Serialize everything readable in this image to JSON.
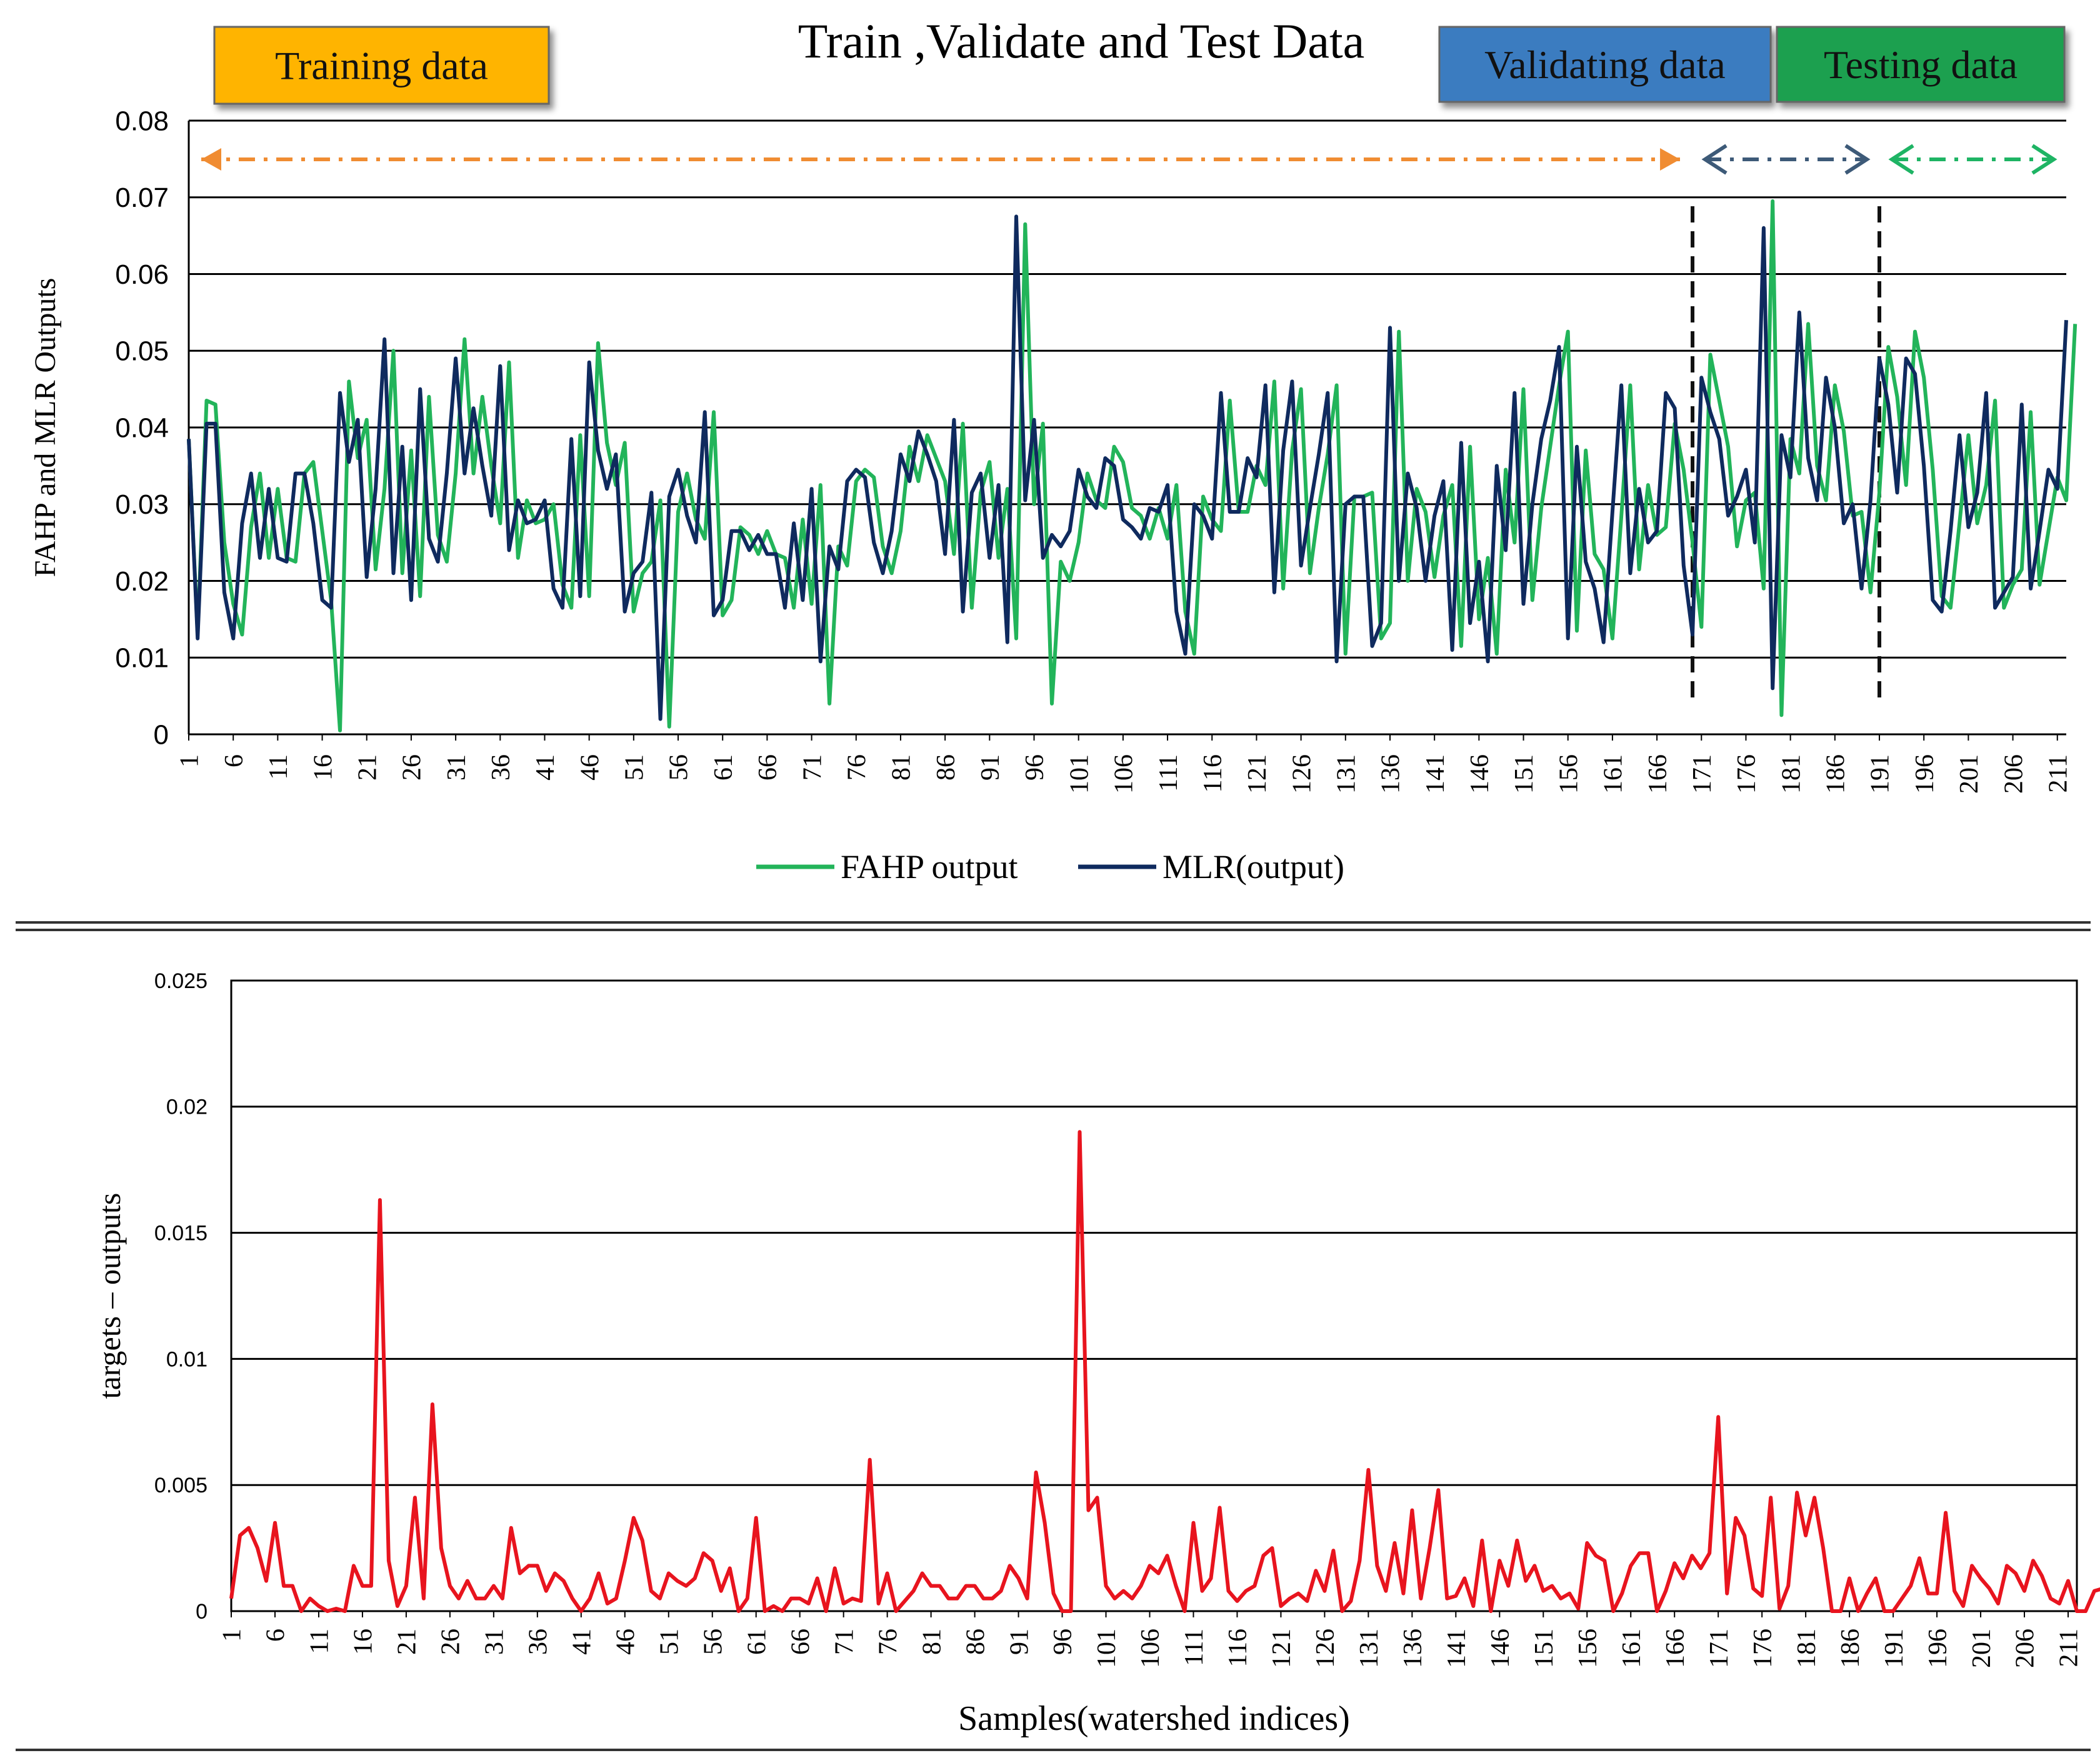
{
  "chart_data": [
    {
      "type": "line",
      "title": "Train ,Validate and Test Data",
      "ylabel": "FAHP  and MLR Outputs",
      "xlabel": "",
      "ylim": [
        0,
        0.08
      ],
      "yticks": [
        "0",
        "0.01",
        "0.02",
        "0.03",
        "0.04",
        "0.05",
        "0.06",
        "0.07",
        "0.08"
      ],
      "x_range": [
        1,
        212
      ],
      "xticks": [
        "1",
        "6",
        "11",
        "16",
        "21",
        "26",
        "31",
        "36",
        "41",
        "46",
        "51",
        "56",
        "61",
        "66",
        "71",
        "76",
        "81",
        "86",
        "91",
        "96",
        "101",
        "106",
        "111",
        "116",
        "121",
        "126",
        "131",
        "136",
        "141",
        "146",
        "151",
        "156",
        "161",
        "166",
        "171",
        "176",
        "181",
        "186",
        "191",
        "196",
        "201",
        "206",
        "211"
      ],
      "grid": "horizontal",
      "legend": "bottom-center",
      "segments": [
        {
          "label": "Training data",
          "color": "#FFB400",
          "arrow_color": "#F08C32",
          "from": 1,
          "to": 170
        },
        {
          "label": "Validating data",
          "color": "#3A7BC0",
          "arrow_color": "#3D5A78",
          "from": 170,
          "to": 191
        },
        {
          "label": "Testing data",
          "color": "#1AA050",
          "arrow_color": "#1EB464",
          "from": 191,
          "to": 212
        }
      ],
      "dividers": [
        170,
        191
      ],
      "colors": {
        "FAHP output": "#22B45A",
        "MLR(output)": "#0F2A5E"
      },
      "series": [
        {
          "name": "FAHP output",
          "values": [
            0.0385,
            0.013,
            0.0435,
            0.043,
            0.025,
            0.017,
            0.013,
            0.027,
            0.034,
            0.023,
            0.032,
            0.023,
            0.0225,
            0.034,
            0.0355,
            0.0265,
            0.0175,
            0.0005,
            0.046,
            0.036,
            0.041,
            0.0215,
            0.032,
            0.05,
            0.021,
            0.037,
            0.018,
            0.044,
            0.026,
            0.0225,
            0.034,
            0.0515,
            0.034,
            0.044,
            0.035,
            0.0275,
            0.0485,
            0.023,
            0.0305,
            0.0275,
            0.028,
            0.03,
            0.0195,
            0.0165,
            0.039,
            0.018,
            0.051,
            0.038,
            0.0325,
            0.038,
            0.016,
            0.021,
            0.0225,
            0.0305,
            0.001,
            0.029,
            0.034,
            0.028,
            0.0255,
            0.042,
            0.0155,
            0.0175,
            0.027,
            0.026,
            0.0235,
            0.0265,
            0.0235,
            0.023,
            0.0165,
            0.028,
            0.017,
            0.0325,
            0.004,
            0.0245,
            0.022,
            0.033,
            0.0345,
            0.0335,
            0.0245,
            0.021,
            0.0265,
            0.0375,
            0.033,
            0.039,
            0.036,
            0.033,
            0.0235,
            0.0405,
            0.0165,
            0.0315,
            0.0355,
            0.023,
            0.032,
            0.0125,
            0.0665,
            0.03,
            0.0405,
            0.004,
            0.0225,
            0.02,
            0.025,
            0.034,
            0.0305,
            0.0295,
            0.0375,
            0.0355,
            0.0295,
            0.0285,
            0.0255,
            0.0295,
            0.0255,
            0.0325,
            0.016,
            0.0105,
            0.031,
            0.028,
            0.0265,
            0.0435,
            0.029,
            0.029,
            0.035,
            0.0325,
            0.046,
            0.019,
            0.037,
            0.045,
            0.021,
            0.0295,
            0.0365,
            0.0455,
            0.0105,
            0.031,
            0.031,
            0.0315,
            0.0125,
            0.0145,
            0.0525,
            0.02,
            0.032,
            0.029,
            0.0205,
            0.0285,
            0.0325,
            0.0115,
            0.0375,
            0.015,
            0.023,
            0.0105,
            0.0345,
            0.025,
            0.045,
            0.0175,
            0.0295,
            0.0375,
            0.0455,
            0.0525,
            0.0135,
            0.037,
            0.0235,
            0.0215,
            0.0125,
            0.0285,
            0.0455,
            0.0215,
            0.0325,
            0.026,
            0.027,
            0.0405,
            0.0345,
            0.025,
            0.014,
            0.0495,
            0.0435,
            0.0375,
            0.0245,
            0.0305,
            0.0315,
            0.019,
            0.0695,
            0.0025,
            0.0385,
            0.034,
            0.0535,
            0.035,
            0.0305,
            0.0455,
            0.0395,
            0.0285,
            0.029,
            0.0185,
            0.0315,
            0.0505,
            0.044,
            0.0325,
            0.0525,
            0.0465,
            0.0345,
            0.018,
            0.0165,
            0.0275,
            0.039,
            0.0275,
            0.0325,
            0.0435,
            0.0165,
            0.0195,
            0.0215,
            0.042,
            0.0195,
            0.0265,
            0.0335,
            0.0305,
            0.0535
          ]
        },
        {
          "name": "MLR(output)",
          "values": [
            0.0385,
            0.0125,
            0.0405,
            0.0405,
            0.0185,
            0.0125,
            0.0275,
            0.034,
            0.023,
            0.032,
            0.023,
            0.0225,
            0.034,
            0.034,
            0.0275,
            0.0175,
            0.0165,
            0.0445,
            0.0355,
            0.041,
            0.0205,
            0.032,
            0.0515,
            0.021,
            0.0375,
            0.0175,
            0.045,
            0.0255,
            0.0225,
            0.034,
            0.049,
            0.034,
            0.0425,
            0.035,
            0.0285,
            0.048,
            0.024,
            0.0305,
            0.0275,
            0.028,
            0.0305,
            0.019,
            0.0165,
            0.0385,
            0.018,
            0.0485,
            0.037,
            0.032,
            0.0365,
            0.016,
            0.021,
            0.0225,
            0.0315,
            0.002,
            0.031,
            0.0345,
            0.0285,
            0.025,
            0.042,
            0.0155,
            0.0175,
            0.0265,
            0.0265,
            0.024,
            0.026,
            0.0235,
            0.0235,
            0.0165,
            0.0275,
            0.0175,
            0.032,
            0.0095,
            0.0245,
            0.0215,
            0.033,
            0.0345,
            0.0335,
            0.025,
            0.021,
            0.0265,
            0.0365,
            0.033,
            0.0395,
            0.0365,
            0.033,
            0.0235,
            0.041,
            0.016,
            0.0315,
            0.034,
            0.023,
            0.0325,
            0.012,
            0.0675,
            0.0305,
            0.041,
            0.023,
            0.026,
            0.0245,
            0.0265,
            0.0345,
            0.031,
            0.0295,
            0.036,
            0.035,
            0.028,
            0.027,
            0.0255,
            0.0295,
            0.029,
            0.0325,
            0.016,
            0.0105,
            0.03,
            0.0285,
            0.0255,
            0.0445,
            0.029,
            0.029,
            0.036,
            0.0335,
            0.0455,
            0.0185,
            0.037,
            0.046,
            0.022,
            0.0295,
            0.0365,
            0.0445,
            0.0095,
            0.03,
            0.031,
            0.031,
            0.0115,
            0.0145,
            0.053,
            0.02,
            0.034,
            0.0295,
            0.02,
            0.0285,
            0.033,
            0.011,
            0.038,
            0.0145,
            0.0225,
            0.0095,
            0.035,
            0.024,
            0.0445,
            0.017,
            0.03,
            0.0385,
            0.0435,
            0.0505,
            0.0125,
            0.0375,
            0.0225,
            0.019,
            0.012,
            0.029,
            0.0455,
            0.021,
            0.032,
            0.025,
            0.0265,
            0.0445,
            0.0425,
            0.022,
            0.013,
            0.0465,
            0.042,
            0.0385,
            0.0285,
            0.031,
            0.0345,
            0.025,
            0.066,
            0.006,
            0.039,
            0.0335,
            0.055,
            0.036,
            0.0305,
            0.0465,
            0.04,
            0.0275,
            0.03,
            0.019,
            0.0305,
            0.049,
            0.043,
            0.0315,
            0.049,
            0.047,
            0.035,
            0.0175,
            0.016,
            0.0265,
            0.039,
            0.027,
            0.0315,
            0.0445,
            0.0165,
            0.0185,
            0.0205,
            0.043,
            0.019,
            0.0265,
            0.0345,
            0.032,
            0.054
          ]
        }
      ]
    },
    {
      "type": "line",
      "title": "",
      "ylabel": "targets – outputs",
      "xlabel": "Samples(watershed indices)",
      "ylim": [
        0,
        0.025
      ],
      "yticks": [
        "0",
        "0.005",
        "0.01",
        "0.015",
        "0.02",
        "0.025"
      ],
      "x_range": [
        1,
        212
      ],
      "xticks": [
        "1",
        "6",
        "11",
        "16",
        "21",
        "26",
        "31",
        "36",
        "41",
        "46",
        "51",
        "56",
        "61",
        "66",
        "71",
        "76",
        "81",
        "86",
        "91",
        "96",
        "101",
        "106",
        "111",
        "116",
        "121",
        "126",
        "131",
        "136",
        "141",
        "146",
        "151",
        "156",
        "161",
        "166",
        "171",
        "176",
        "181",
        "186",
        "191",
        "196",
        "201",
        "206",
        "211"
      ],
      "grid": "horizontal",
      "colors": {
        "error": "#E8141E"
      },
      "series": [
        {
          "values": [
            0.0005,
            0.003,
            0.0033,
            0.0025,
            0.0012,
            0.0035,
            0.001,
            0.001,
            0.0,
            0.0005,
            0.0002,
            0.0,
            0.0001,
            0.0,
            0.0018,
            0.001,
            0.001,
            0.0163,
            0.002,
            0.0002,
            0.001,
            0.0045,
            0.0005,
            0.0082,
            0.0025,
            0.001,
            0.0005,
            0.0012,
            0.0005,
            0.0005,
            0.001,
            0.0005,
            0.0033,
            0.0015,
            0.0018,
            0.0018,
            0.0008,
            0.0015,
            0.0012,
            0.0005,
            0.0,
            0.0005,
            0.0015,
            0.0003,
            0.0005,
            0.002,
            0.0037,
            0.0028,
            0.0008,
            0.0005,
            0.0015,
            0.0012,
            0.001,
            0.0013,
            0.0023,
            0.002,
            0.0008,
            0.0017,
            0.0,
            0.0005,
            0.0037,
            0.0,
            0.0002,
            0.0,
            0.0005,
            0.0005,
            0.0003,
            0.0013,
            0.0,
            0.0017,
            0.0003,
            0.0005,
            0.0004,
            0.006,
            0.0003,
            0.0015,
            0.0,
            0.0004,
            0.0008,
            0.0015,
            0.001,
            0.001,
            0.0005,
            0.0005,
            0.001,
            0.001,
            0.0005,
            0.0005,
            0.0008,
            0.0018,
            0.0013,
            0.0005,
            0.0055,
            0.0035,
            0.0007,
            0.0,
            0.0,
            0.019,
            0.004,
            0.0045,
            0.001,
            0.0005,
            0.0008,
            0.0005,
            0.001,
            0.0018,
            0.0015,
            0.0022,
            0.001,
            0.0,
            0.0035,
            0.0008,
            0.0013,
            0.0041,
            0.0008,
            0.0004,
            0.0008,
            0.001,
            0.0022,
            0.0025,
            0.0002,
            0.0005,
            0.0007,
            0.0004,
            0.0016,
            0.0008,
            0.0024,
            0.0,
            0.0004,
            0.002,
            0.0056,
            0.0018,
            0.0008,
            0.0027,
            0.0007,
            0.004,
            0.0005,
            0.0025,
            0.0048,
            0.0005,
            0.0006,
            0.0013,
            0.0002,
            0.0028,
            0.0,
            0.002,
            0.001,
            0.0028,
            0.0012,
            0.0018,
            0.0008,
            0.001,
            0.0005,
            0.0007,
            0.0001,
            0.0027,
            0.0022,
            0.002,
            0.0,
            0.0007,
            0.0018,
            0.0023,
            0.0023,
            0.0,
            0.0008,
            0.0019,
            0.0013,
            0.0022,
            0.0017,
            0.0023,
            0.0077,
            0.0007,
            0.0037,
            0.003,
            0.0009,
            0.0006,
            0.0045,
            0.0001,
            0.001,
            0.0047,
            0.003,
            0.0045,
            0.0025,
            0.0,
            0.0,
            0.0013,
            0.0,
            0.0007,
            0.0013,
            0.0,
            0.0,
            0.0005,
            0.001,
            0.0021,
            0.0007,
            0.0007,
            0.0039,
            0.0008,
            0.0002,
            0.0018,
            0.0013,
            0.0009,
            0.0003,
            0.0018,
            0.0015,
            0.0008,
            0.002,
            0.0014,
            0.0005,
            0.0003,
            0.0012,
            0.0,
            0.0,
            0.0008,
            0.0009,
            0.0009
          ]
        }
      ]
    }
  ],
  "legend": {
    "fahp": "FAHP output",
    "mlr": "MLR(output)"
  }
}
